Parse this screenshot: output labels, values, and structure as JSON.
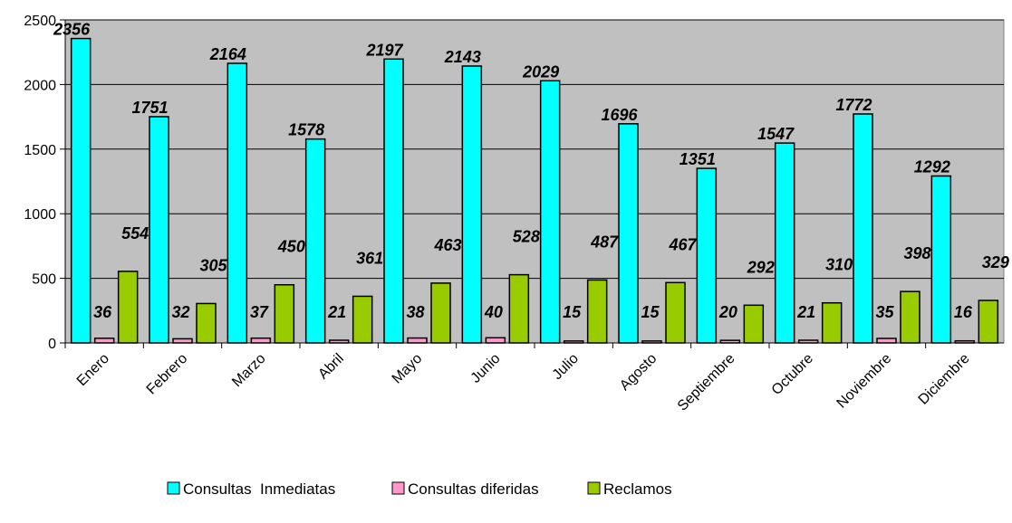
{
  "chart_data": {
    "type": "bar",
    "categories": [
      "Enero",
      "Febrero",
      "Marzo",
      "Abril",
      "Mayo",
      "Junio",
      "Julio",
      "Agosto",
      "Septiembre",
      "Octubre",
      "Noviembre",
      "Diciembre"
    ],
    "series": [
      {
        "name": "Consultas  Inmediatas",
        "color": "#00FFFF",
        "values": [
          2356,
          1751,
          2164,
          1578,
          2197,
          2143,
          2029,
          1696,
          1351,
          1547,
          1772,
          1292
        ]
      },
      {
        "name": "Consultas diferidas",
        "color": "#FF99CC",
        "values": [
          36,
          32,
          37,
          21,
          38,
          40,
          15,
          15,
          20,
          21,
          35,
          16
        ]
      },
      {
        "name": "Reclamos",
        "color": "#99CC00",
        "values": [
          554,
          305,
          450,
          361,
          463,
          528,
          487,
          467,
          292,
          310,
          398,
          329
        ]
      }
    ],
    "ylim": [
      0,
      2500
    ],
    "yticks": [
      0,
      500,
      1000,
      1500,
      2000,
      2500
    ],
    "grid": true,
    "plot_background": "#C0C0C0",
    "legend_position": "bottom"
  }
}
